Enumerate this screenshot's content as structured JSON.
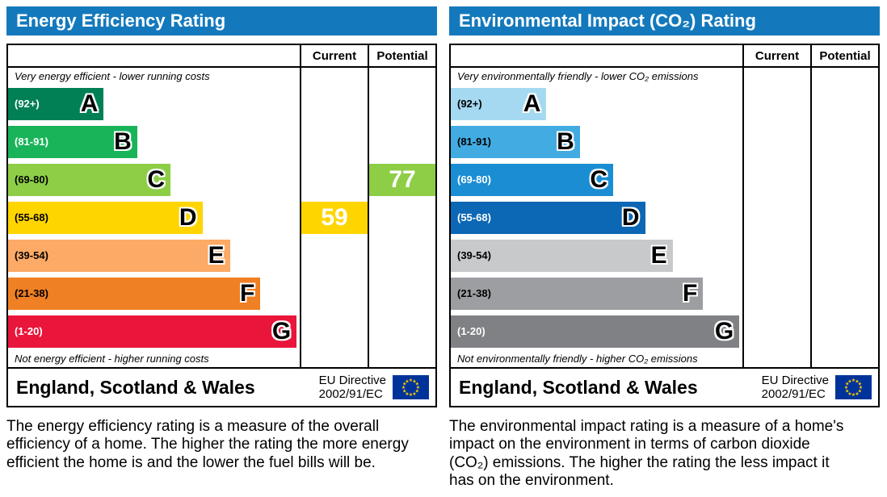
{
  "panels": [
    {
      "title": "Energy Efficiency Rating",
      "columns": {
        "current": "Current",
        "potential": "Potential"
      },
      "top_caption": "Very energy efficient - lower running costs",
      "bottom_caption": "Not energy efficient - higher running costs",
      "bands": [
        {
          "range": "(92+)",
          "letter": "A",
          "color": "#008054",
          "width_pct": 33,
          "label_color": "#ffffff"
        },
        {
          "range": "(81-91)",
          "letter": "B",
          "color": "#19b459",
          "width_pct": 44.5,
          "label_color": "#ffffff"
        },
        {
          "range": "(69-80)",
          "letter": "C",
          "color": "#8dce46",
          "width_pct": 56,
          "label_color": "#000000"
        },
        {
          "range": "(55-68)",
          "letter": "D",
          "color": "#ffd500",
          "width_pct": 67,
          "label_color": "#000000"
        },
        {
          "range": "(39-54)",
          "letter": "E",
          "color": "#fcaa65",
          "width_pct": 76.5,
          "label_color": "#000000"
        },
        {
          "range": "(21-38)",
          "letter": "F",
          "color": "#ef8023",
          "width_pct": 87,
          "label_color": "#000000"
        },
        {
          "range": "(1-20)",
          "letter": "G",
          "color": "#e9153b",
          "width_pct": 99.5,
          "label_color": "#ffffff"
        }
      ],
      "current": {
        "value": "59",
        "color": "#ffd500",
        "band_index": 3
      },
      "potential": {
        "value": "77",
        "color": "#8dce46",
        "band_index": 2
      },
      "footer": {
        "region": "England, Scotland & Wales",
        "directive_line1": "EU Directive",
        "directive_line2": "2002/91/EC"
      },
      "description": "The energy efficiency rating is a measure of the overall efficiency of a home. The higher the rating the more energy efficient the home is and the lower the fuel bills will be."
    },
    {
      "title": "Environmental Impact (CO₂) Rating",
      "columns": {
        "current": "Current",
        "potential": "Potential"
      },
      "top_caption": "Very environmentally friendly - lower CO₂ emissions",
      "bottom_caption": "Not environmentally friendly - higher CO₂ emissions",
      "bands": [
        {
          "range": "(92+)",
          "letter": "A",
          "color": "#a4d9f1",
          "width_pct": 33,
          "label_color": "#000000"
        },
        {
          "range": "(81-91)",
          "letter": "B",
          "color": "#42ace2",
          "width_pct": 44.5,
          "label_color": "#000000"
        },
        {
          "range": "(69-80)",
          "letter": "C",
          "color": "#1b8ed3",
          "width_pct": 56,
          "label_color": "#ffffff"
        },
        {
          "range": "(55-68)",
          "letter": "D",
          "color": "#0c67b4",
          "width_pct": 67,
          "label_color": "#ffffff"
        },
        {
          "range": "(39-54)",
          "letter": "E",
          "color": "#c8c9cb",
          "width_pct": 76.5,
          "label_color": "#000000"
        },
        {
          "range": "(21-38)",
          "letter": "F",
          "color": "#9c9ea1",
          "width_pct": 87,
          "label_color": "#000000"
        },
        {
          "range": "(1-20)",
          "letter": "G",
          "color": "#7f8184",
          "width_pct": 99.5,
          "label_color": "#ffffff"
        }
      ],
      "current": null,
      "potential": null,
      "footer": {
        "region": "England, Scotland & Wales",
        "directive_line1": "EU Directive",
        "directive_line2": "2002/91/EC"
      },
      "description": "The environmental impact rating is a measure of a home's impact on the environment in terms of carbon dioxide (CO₂) emissions. The higher the rating the less impact it has on the environment."
    }
  ],
  "chart_data": [
    {
      "type": "bar",
      "title": "Energy Efficiency Rating",
      "categories": [
        "A (92+)",
        "B (81-91)",
        "C (69-80)",
        "D (55-68)",
        "E (39-54)",
        "F (21-38)",
        "G (1-20)"
      ],
      "band_colors": [
        "#008054",
        "#19b459",
        "#8dce46",
        "#ffd500",
        "#fcaa65",
        "#ef8023",
        "#e9153b"
      ],
      "current": 59,
      "current_band": "D",
      "potential": 77,
      "potential_band": "C",
      "top_caption": "Very energy efficient - lower running costs",
      "bottom_caption": "Not energy efficient - higher running costs",
      "footer": "England, Scotland & Wales — EU Directive 2002/91/EC"
    },
    {
      "type": "bar",
      "title": "Environmental Impact (CO₂) Rating",
      "categories": [
        "A (92+)",
        "B (81-91)",
        "C (69-80)",
        "D (55-68)",
        "E (39-54)",
        "F (21-38)",
        "G (1-20)"
      ],
      "band_colors": [
        "#a4d9f1",
        "#42ace2",
        "#1b8ed3",
        "#0c67b4",
        "#c8c9cb",
        "#9c9ea1",
        "#7f8184"
      ],
      "current": null,
      "potential": null,
      "top_caption": "Very environmentally friendly - lower CO₂ emissions",
      "bottom_caption": "Not environmentally friendly - higher CO₂ emissions",
      "footer": "England, Scotland & Wales — EU Directive 2002/91/EC"
    }
  ]
}
